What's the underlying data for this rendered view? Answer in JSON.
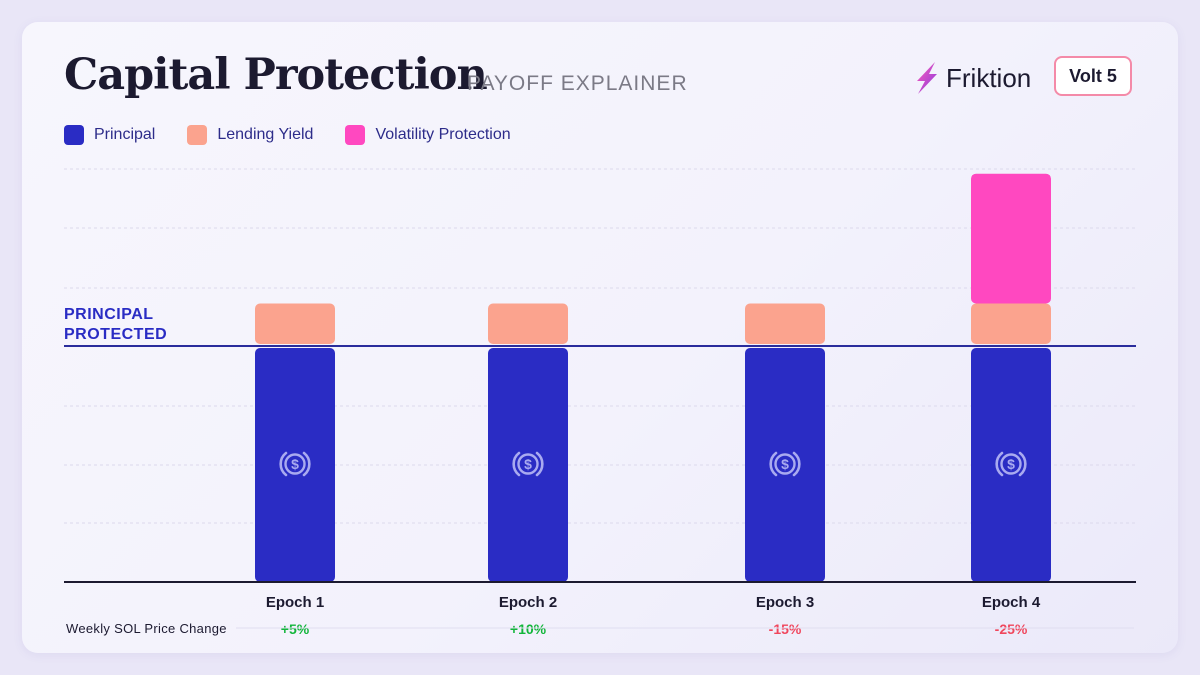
{
  "header": {
    "title": "Capital Protection",
    "subtitle": "PAYOFF EXPLAINER",
    "brand_name": "Friktion",
    "badge": "Volt 5"
  },
  "icons": {
    "brand": "lightning-bolt-icon",
    "bar": "usd-coin-icon"
  },
  "colors": {
    "principal": "#2a2cc4",
    "lending_yield": "#fba38e",
    "volatility_protection": "#ff48c0",
    "positive": "#12b53a",
    "negative": "#f0465c",
    "reference_line": "#2a2c9c"
  },
  "chart_data": {
    "type": "bar",
    "stacked": true,
    "categories": [
      "Epoch 1",
      "Epoch 2",
      "Epoch 3",
      "Epoch 4"
    ],
    "series": [
      {
        "name": "Principal",
        "values": [
          100,
          100,
          100,
          100
        ]
      },
      {
        "name": "Lending Yield",
        "values": [
          18,
          18,
          18,
          18
        ]
      },
      {
        "name": "Volatility Protection",
        "values": [
          0,
          0,
          0,
          55
        ]
      }
    ],
    "reference_line": {
      "label_line1": "PRINCIPAL",
      "label_line2": "PROTECTED",
      "value": 100
    },
    "row_label": "Weekly SOL Price Change",
    "price_changes": [
      "+5%",
      "+10%",
      "-15%",
      "-25%"
    ],
    "price_change_signs": [
      "positive",
      "positive",
      "negative",
      "negative"
    ],
    "ylim": [
      0,
      175
    ],
    "grid": true,
    "legend_position": "top-left"
  }
}
